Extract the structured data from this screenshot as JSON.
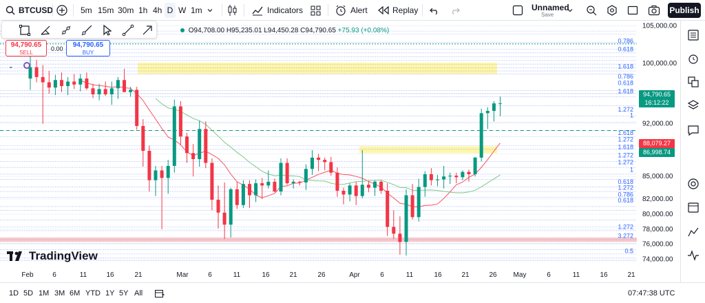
{
  "topbar": {
    "symbol": "BTCUSD",
    "intervals": [
      "5m",
      "15m",
      "30m",
      "1h",
      "4h",
      "D",
      "W",
      "1m"
    ],
    "indicators_label": "Indicators",
    "alert_label": "Alert",
    "replay_label": "Replay",
    "layout_name": "Unnamed",
    "layout_status": "Save",
    "publish_label": "Publish"
  },
  "legend": {
    "open": "O94,708.00",
    "high": "H95,235.01",
    "low": "L94,450.28",
    "close": "C94,790.65",
    "change": "+75.93 (+0.08%)"
  },
  "trade": {
    "sell_price": "94,790.65",
    "sell_label": "SELL",
    "spread": "0.00",
    "buy_price": "94,790.65",
    "buy_label": "BUY"
  },
  "logo_text": "TradingView",
  "price_axis": {
    "ticks": [
      "105,000.00",
      "100,000.00",
      "96,000.00",
      "92,000.00",
      "88,000.00",
      "85,000.00",
      "82,000.00",
      "80,000.00",
      "78,000.00",
      "76,000.00",
      "74,000.00"
    ],
    "current_price": "94,790.65",
    "countdown": "16:12:22",
    "label_red": "88,079.27",
    "label_green": "86,998.74"
  },
  "fib_labels": [
    "0.786",
    "0.618",
    "1.618",
    "0.786",
    "0.618",
    "1.618",
    "1.272",
    "1",
    "1.618",
    "1.272",
    "1.618",
    "1.272",
    "1.272",
    "1",
    "0.618",
    "1.272",
    "0.786",
    "0.618",
    "1.272",
    "3.272",
    "0.5"
  ],
  "time_axis": [
    "Feb",
    "6",
    "11",
    "16",
    "21",
    "Mar",
    "6",
    "11",
    "16",
    "21",
    "26",
    "Apr",
    "6",
    "11",
    "16",
    "21",
    "26",
    "May",
    "6",
    "11",
    "16",
    "21"
  ],
  "bottombar": {
    "ranges": [
      "1D",
      "5D",
      "1M",
      "3M",
      "6M",
      "YTD",
      "1Y",
      "5Y",
      "All"
    ],
    "clock": "07:47:38 UTC"
  },
  "colors": {
    "up": "#089981",
    "down": "#f23645",
    "accent": "#2962ff",
    "zone_yellow": "#fff59d",
    "zone_red": "#f8c4c4",
    "ma_red": "#f7525f",
    "ma_green": "#81c784"
  },
  "chart_data": {
    "type": "candlestick",
    "ylim": [
      73500,
      105500
    ],
    "candles": [
      [
        98000,
        101000,
        96500,
        99500
      ],
      [
        99500,
        100500,
        97500,
        98200
      ],
      [
        98200,
        99800,
        92000,
        97500
      ],
      [
        97500,
        99000,
        96000,
        96800
      ],
      [
        96800,
        98500,
        95800,
        97800
      ],
      [
        97800,
        98800,
        96200,
        97000
      ],
      [
        97000,
        98200,
        95800,
        97600
      ],
      [
        97600,
        98600,
        96600,
        97200
      ],
      [
        97200,
        98600,
        96300,
        98000
      ],
      [
        98000,
        98800,
        96500,
        96700
      ],
      [
        96700,
        97300,
        95400,
        95900
      ],
      [
        95900,
        97300,
        95100,
        96600
      ],
      [
        96600,
        97600,
        95700,
        95900
      ],
      [
        95900,
        97600,
        94500,
        96700
      ],
      [
        96700,
        98200,
        95300,
        97800
      ],
      [
        97800,
        99300,
        96200,
        96200
      ],
      [
        96200,
        96900,
        95600,
        96500
      ],
      [
        96500,
        96900,
        91200,
        91700
      ],
      [
        91700,
        92600,
        86300,
        88400
      ],
      [
        88400,
        89100,
        83000,
        84500
      ],
      [
        84500,
        86400,
        82400,
        85800
      ],
      [
        85800,
        86400,
        78000,
        84800
      ],
      [
        84800,
        87200,
        82700,
        86400
      ],
      [
        86400,
        95200,
        85500,
        94300
      ],
      [
        94300,
        95000,
        89200,
        90300
      ],
      [
        90300,
        90800,
        86800,
        88100
      ],
      [
        88100,
        89300,
        85000,
        87300
      ],
      [
        87300,
        92400,
        86300,
        91300
      ],
      [
        91300,
        92300,
        86100,
        86800
      ],
      [
        86800,
        87400,
        80500,
        81900
      ],
      [
        81900,
        83800,
        78100,
        80200
      ],
      [
        80200,
        84200,
        76700,
        78600
      ],
      [
        78600,
        83500,
        76900,
        83300
      ],
      [
        83300,
        84300,
        80700,
        81200
      ],
      [
        81200,
        84500,
        80800,
        84000
      ],
      [
        84000,
        84500,
        80800,
        82500
      ],
      [
        82500,
        84600,
        81600,
        84100
      ],
      [
        84100,
        84800,
        82000,
        83800
      ],
      [
        83800,
        85800,
        83400,
        84300
      ],
      [
        84300,
        84700,
        82900,
        83000
      ],
      [
        83000,
        87400,
        82500,
        86800
      ],
      [
        86800,
        87400,
        83900,
        84100
      ],
      [
        84100,
        84600,
        83400,
        84300
      ],
      [
        84300,
        84400,
        83800,
        84200
      ],
      [
        84200,
        86600,
        83200,
        86000
      ],
      [
        86000,
        88500,
        85200,
        87500
      ],
      [
        87500,
        88000,
        85700,
        87200
      ],
      [
        87200,
        87500,
        85800,
        86900
      ],
      [
        86900,
        87600,
        85100,
        85500
      ],
      [
        85500,
        86200,
        82300,
        83100
      ],
      [
        83100,
        83500,
        81300,
        82600
      ],
      [
        82600,
        84100,
        81700,
        83800
      ],
      [
        83800,
        84300,
        81200,
        82400
      ],
      [
        82400,
        88500,
        82100,
        83900
      ],
      [
        83900,
        84400,
        82900,
        83500
      ],
      [
        83500,
        84500,
        82400,
        84300
      ],
      [
        84300,
        84500,
        82700,
        83100
      ],
      [
        83100,
        84100,
        77100,
        78300
      ],
      [
        78300,
        80500,
        76700,
        77400
      ],
      [
        77400,
        79700,
        74600,
        76300
      ],
      [
        76300,
        83300,
        74500,
        82500
      ],
      [
        82500,
        84000,
        79300,
        79600
      ],
      [
        79600,
        84700,
        79000,
        83600
      ],
      [
        83600,
        85700,
        82300,
        85300
      ],
      [
        85300,
        86100,
        83800,
        84500
      ],
      [
        84500,
        85200,
        83700,
        84600
      ],
      [
        84600,
        86400,
        83400,
        85000
      ],
      [
        85000,
        85500,
        84000,
        85100
      ],
      [
        85100,
        85500,
        84100,
        84900
      ],
      [
        84900,
        85800,
        84500,
        85600
      ],
      [
        85600,
        85900,
        84300,
        85300
      ],
      [
        85300,
        87600,
        85000,
        87500
      ],
      [
        87500,
        94000,
        87000,
        93400
      ],
      [
        93400,
        94200,
        91300,
        93700
      ],
      [
        93700,
        95000,
        92300,
        94700
      ],
      [
        94700,
        95600,
        93000,
        94700
      ]
    ],
    "zones": [
      {
        "from": 98600,
        "to": 100100,
        "color": "yellow"
      },
      {
        "from": 88100,
        "to": 89000,
        "color": "yellow"
      },
      {
        "from": 76300,
        "to": 76900,
        "color": "red"
      }
    ]
  }
}
